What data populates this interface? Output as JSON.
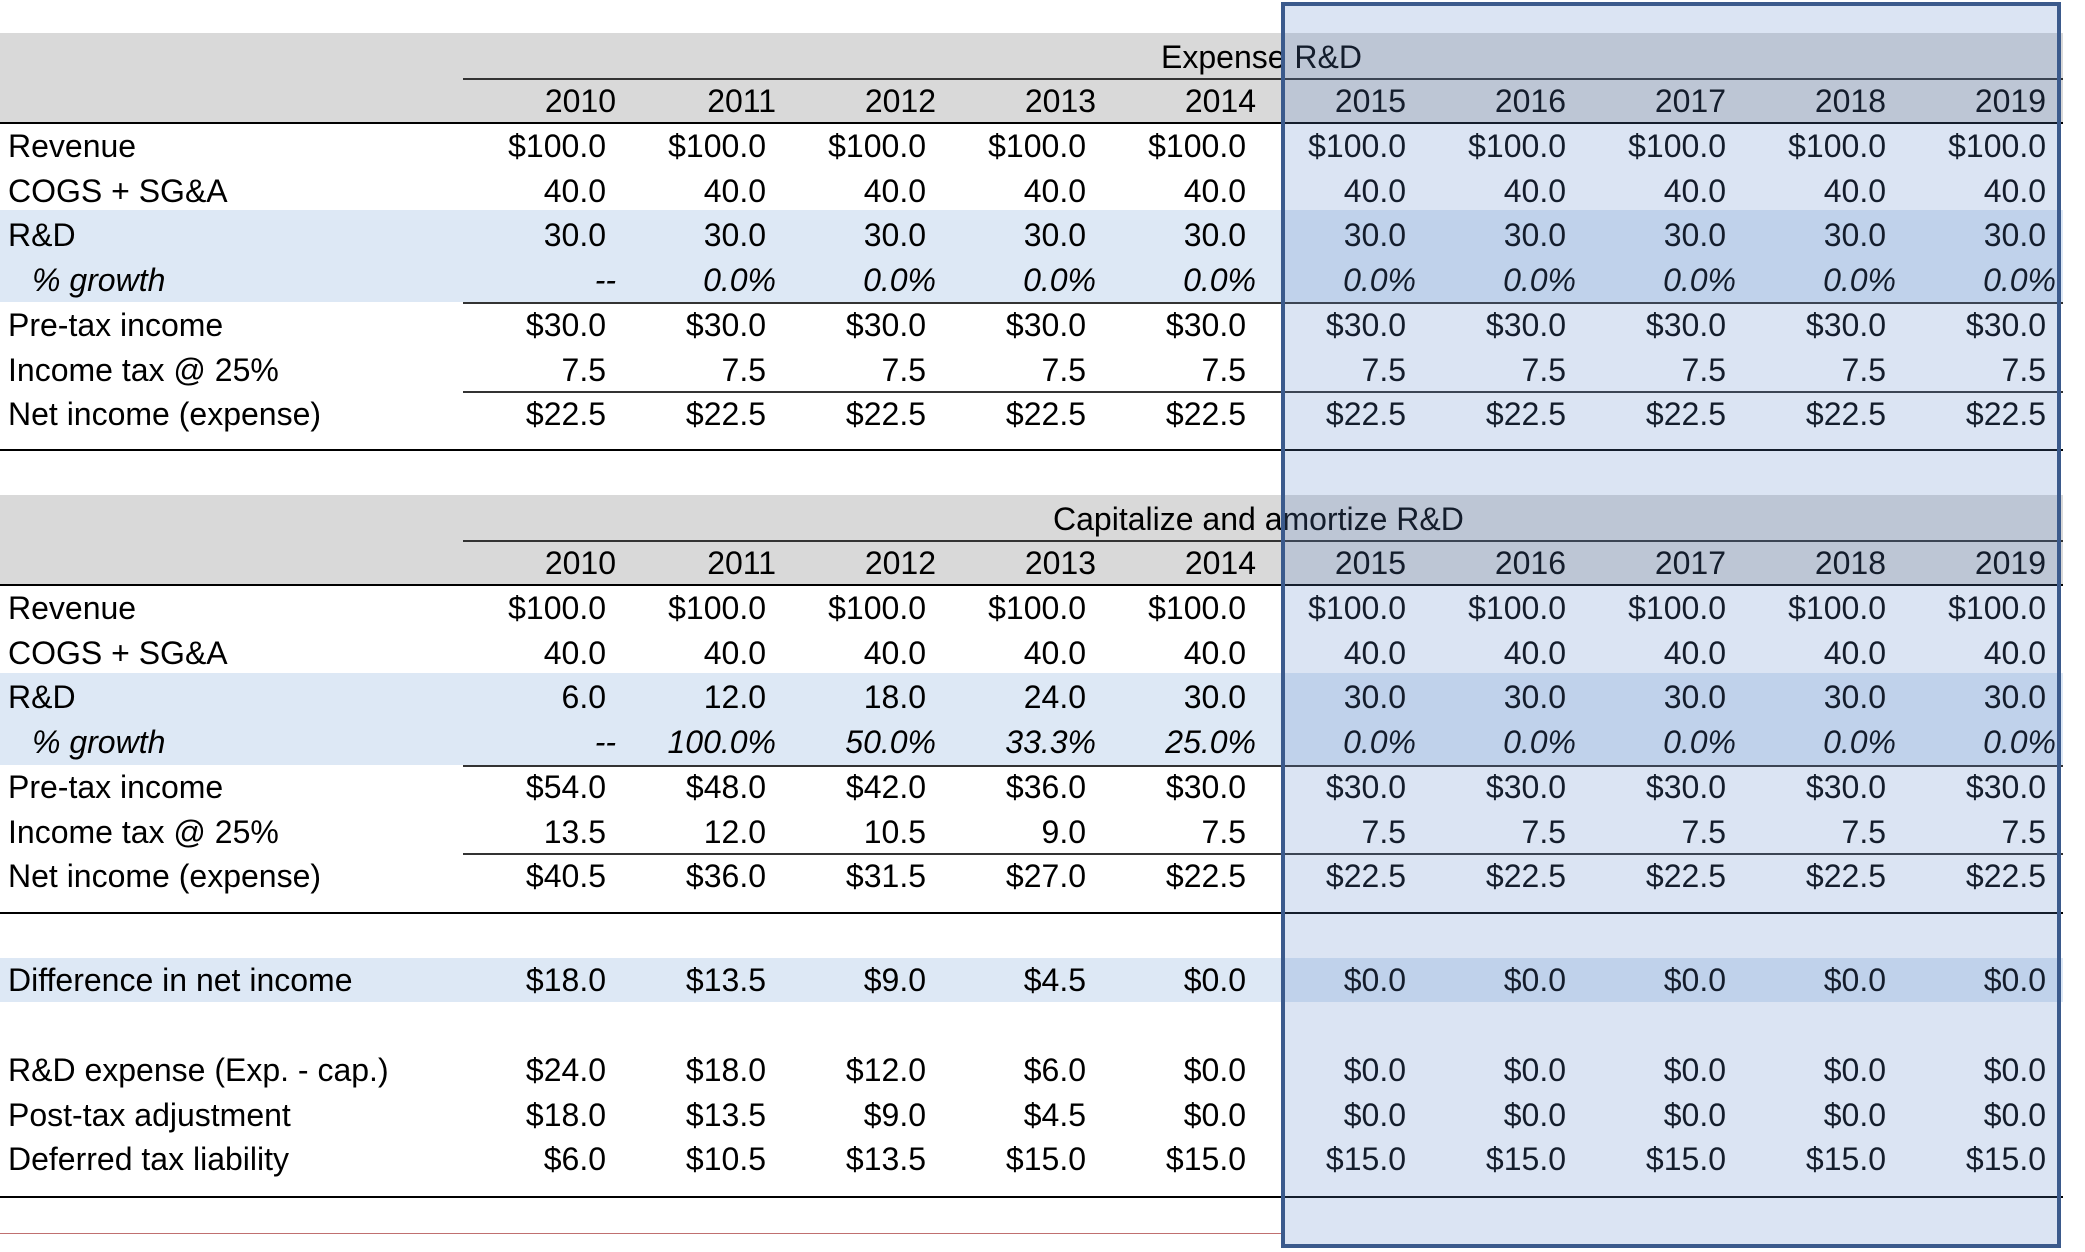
{
  "years": [
    "2010",
    "2011",
    "2012",
    "2013",
    "2014",
    "2015",
    "2016",
    "2017",
    "2018",
    "2019"
  ],
  "sections": [
    {
      "title": "Expense R&D",
      "rows": [
        {
          "label": "Revenue",
          "values": [
            "$100.0",
            "$100.0",
            "$100.0",
            "$100.0",
            "$100.0",
            "$100.0",
            "$100.0",
            "$100.0",
            "$100.0",
            "$100.0"
          ]
        },
        {
          "label": "COGS + SG&A",
          "values": [
            "40.0",
            "40.0",
            "40.0",
            "40.0",
            "40.0",
            "40.0",
            "40.0",
            "40.0",
            "40.0",
            "40.0"
          ]
        },
        {
          "label": "R&D",
          "values": [
            "30.0",
            "30.0",
            "30.0",
            "30.0",
            "30.0",
            "30.0",
            "30.0",
            "30.0",
            "30.0",
            "30.0"
          ]
        },
        {
          "label": "% growth",
          "values": [
            "--",
            "0.0%",
            "0.0%",
            "0.0%",
            "0.0%",
            "0.0%",
            "0.0%",
            "0.0%",
            "0.0%",
            "0.0%"
          ]
        },
        {
          "label": "Pre-tax income",
          "values": [
            "$30.0",
            "$30.0",
            "$30.0",
            "$30.0",
            "$30.0",
            "$30.0",
            "$30.0",
            "$30.0",
            "$30.0",
            "$30.0"
          ]
        },
        {
          "label": "Income tax @ 25%",
          "values": [
            "7.5",
            "7.5",
            "7.5",
            "7.5",
            "7.5",
            "7.5",
            "7.5",
            "7.5",
            "7.5",
            "7.5"
          ]
        },
        {
          "label": "Net income (expense)",
          "values": [
            "$22.5",
            "$22.5",
            "$22.5",
            "$22.5",
            "$22.5",
            "$22.5",
            "$22.5",
            "$22.5",
            "$22.5",
            "$22.5"
          ]
        }
      ]
    },
    {
      "title": "Capitalize and amortize R&D",
      "rows": [
        {
          "label": "Revenue",
          "values": [
            "$100.0",
            "$100.0",
            "$100.0",
            "$100.0",
            "$100.0",
            "$100.0",
            "$100.0",
            "$100.0",
            "$100.0",
            "$100.0"
          ]
        },
        {
          "label": "COGS + SG&A",
          "values": [
            "40.0",
            "40.0",
            "40.0",
            "40.0",
            "40.0",
            "40.0",
            "40.0",
            "40.0",
            "40.0",
            "40.0"
          ]
        },
        {
          "label": "R&D",
          "values": [
            "6.0",
            "12.0",
            "18.0",
            "24.0",
            "30.0",
            "30.0",
            "30.0",
            "30.0",
            "30.0",
            "30.0"
          ]
        },
        {
          "label": "% growth",
          "values": [
            "--",
            "100.0%",
            "50.0%",
            "33.3%",
            "25.0%",
            "0.0%",
            "0.0%",
            "0.0%",
            "0.0%",
            "0.0%"
          ]
        },
        {
          "label": "Pre-tax income",
          "values": [
            "$54.0",
            "$48.0",
            "$42.0",
            "$36.0",
            "$30.0",
            "$30.0",
            "$30.0",
            "$30.0",
            "$30.0",
            "$30.0"
          ]
        },
        {
          "label": "Income tax @ 25%",
          "values": [
            "13.5",
            "12.0",
            "10.5",
            "9.0",
            "7.5",
            "7.5",
            "7.5",
            "7.5",
            "7.5",
            "7.5"
          ]
        },
        {
          "label": "Net income (expense)",
          "values": [
            "$40.5",
            "$36.0",
            "$31.5",
            "$27.0",
            "$22.5",
            "$22.5",
            "$22.5",
            "$22.5",
            "$22.5",
            "$22.5"
          ]
        }
      ]
    }
  ],
  "difference": {
    "label": "Difference in net income",
    "values": [
      "$18.0",
      "$13.5",
      "$9.0",
      "$4.5",
      "$0.0",
      "$0.0",
      "$0.0",
      "$0.0",
      "$0.0",
      "$0.0"
    ]
  },
  "summary": [
    {
      "label": "R&D expense (Exp. - cap.)",
      "values": [
        "$24.0",
        "$18.0",
        "$12.0",
        "$6.0",
        "$0.0",
        "$0.0",
        "$0.0",
        "$0.0",
        "$0.0",
        "$0.0"
      ]
    },
    {
      "label": "Post-tax adjustment",
      "values": [
        "$18.0",
        "$13.5",
        "$9.0",
        "$4.5",
        "$0.0",
        "$0.0",
        "$0.0",
        "$0.0",
        "$0.0",
        "$0.0"
      ]
    },
    {
      "label": "Deferred tax liability",
      "values": [
        "$6.0",
        "$10.5",
        "$13.5",
        "$15.0",
        "$15.0",
        "$15.0",
        "$15.0",
        "$15.0",
        "$15.0",
        "$15.0"
      ]
    }
  ]
}
